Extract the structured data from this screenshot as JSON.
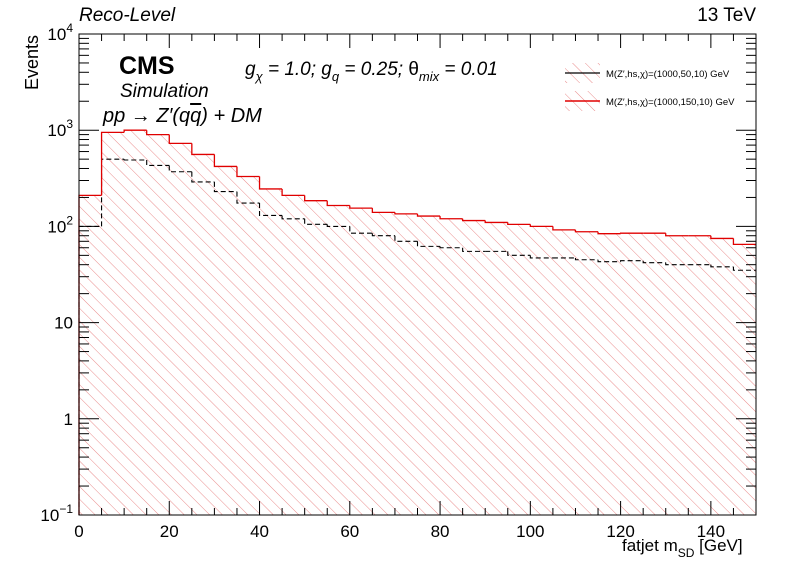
{
  "header": {
    "left_label": "Reco-Level",
    "right_label": "13 TeV"
  },
  "annotations": {
    "experiment": "CMS",
    "status": "Simulation",
    "process": "pp → Z′(qq̄) + DM",
    "couplings": "g_χ = 1.0; g_q = 0.25; θ_mix = 0.01"
  },
  "colors": {
    "signal_1": "#000000",
    "signal_2": "#e00000",
    "hatch": "#e88080"
  },
  "chart_data": {
    "type": "area",
    "title": "",
    "xlabel": "fatjet m_SD [GeV]",
    "ylabel": "Events",
    "xlim": [
      0,
      150
    ],
    "ylim": [
      0.1,
      10000
    ],
    "y_scale": "log",
    "x_ticks": [
      "0",
      "20",
      "40",
      "60",
      "80",
      "100",
      "120",
      "140"
    ],
    "y_ticks": [
      "10⁻¹",
      "1",
      "10",
      "10²",
      "10³",
      "10⁴"
    ],
    "grid": false,
    "legend_position": "top-right",
    "bin_edges": [
      0,
      5,
      10,
      15,
      20,
      25,
      30,
      35,
      40,
      45,
      50,
      55,
      60,
      65,
      70,
      75,
      80,
      85,
      90,
      95,
      100,
      105,
      110,
      115,
      120,
      125,
      130,
      135,
      140,
      145,
      150
    ],
    "series": [
      {
        "name": "M(Z′,hs,χ)=(1000,50,10) GeV",
        "style": "dashed-step",
        "values": [
          100,
          500,
          490,
          430,
          370,
          290,
          230,
          175,
          130,
          120,
          105,
          100,
          85,
          80,
          70,
          62,
          60,
          55,
          55,
          50,
          47,
          47,
          45,
          43,
          44,
          42,
          40,
          40,
          38,
          35
        ]
      },
      {
        "name": "M(Z′,hs,χ)=(1000,150,10) GeV",
        "style": "solid-step-hatched",
        "values": [
          210,
          950,
          1000,
          900,
          730,
          560,
          420,
          330,
          245,
          210,
          185,
          165,
          155,
          140,
          135,
          128,
          120,
          115,
          110,
          105,
          100,
          92,
          88,
          84,
          85,
          85,
          80,
          80,
          75,
          65
        ]
      }
    ]
  }
}
